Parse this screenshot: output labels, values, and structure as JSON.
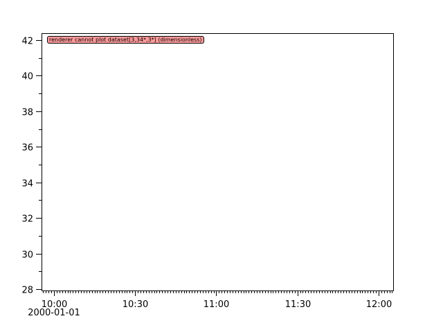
{
  "chart_data": {
    "type": "line",
    "title": "",
    "xlabel": "",
    "ylabel": "",
    "x_axis": {
      "type": "time",
      "range": [
        "2000-01-01T09:55:24",
        "2000-01-01T12:05:24"
      ],
      "major_ticks": [
        "10:00",
        "10:30",
        "11:00",
        "11:30",
        "12:00"
      ],
      "major_tick_minutes": [
        600,
        630,
        660,
        690,
        720
      ],
      "minor_tick_interval_minutes": 1,
      "date_label": "2000-01-01"
    },
    "y_axis": {
      "range": [
        27.92,
        42.39
      ],
      "major_ticks": [
        "28",
        "30",
        "32",
        "34",
        "36",
        "38",
        "40",
        "42"
      ],
      "minor_tick_interval": 1
    },
    "series": [],
    "grid": false,
    "annotations": [
      {
        "text": "renderer cannot plot dataset[3,34*,3*] (dimensionless)",
        "background": "#ff9b9b",
        "placement": "top-left"
      }
    ]
  }
}
